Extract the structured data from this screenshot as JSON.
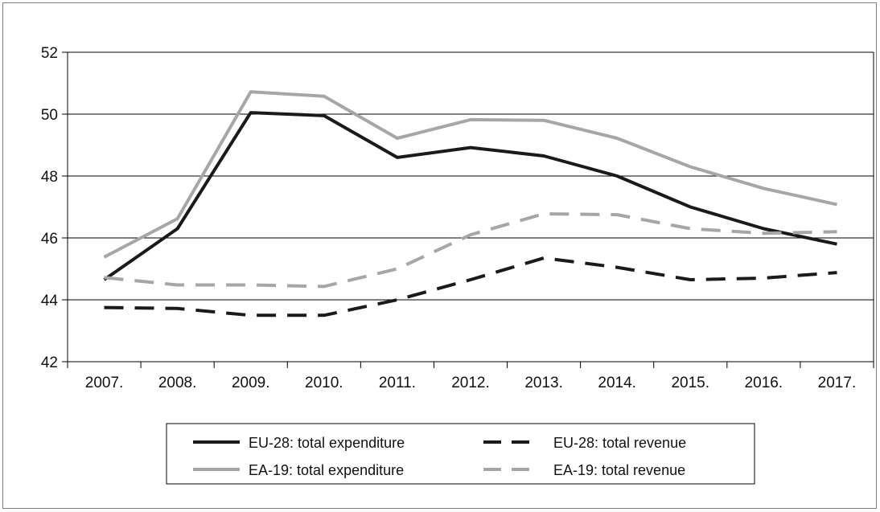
{
  "chart_data": {
    "type": "line",
    "title": "",
    "xlabel": "",
    "ylabel": "",
    "categories": [
      "2007.",
      "2008.",
      "2009.",
      "2010.",
      "2011.",
      "2012.",
      "2013.",
      "2014.",
      "2015.",
      "2016.",
      "2017."
    ],
    "ylim": [
      42,
      52
    ],
    "yticks": [
      "42",
      "44",
      "46",
      "48",
      "50",
      "52"
    ],
    "grid": true,
    "legend_position": "bottom",
    "series": [
      {
        "name": "EU-28: total expenditure",
        "style": "solid",
        "color": "#1a1a1a",
        "values": [
          44.65,
          46.3,
          50.05,
          49.95,
          48.6,
          48.92,
          48.65,
          48.0,
          47.0,
          46.3,
          45.8
        ]
      },
      {
        "name": "EU-28: total revenue",
        "style": "dashed",
        "color": "#1a1a1a",
        "values": [
          43.75,
          43.72,
          43.5,
          43.5,
          44.0,
          44.65,
          45.35,
          45.05,
          44.65,
          44.7,
          44.88
        ]
      },
      {
        "name": "EA-19: total expenditure",
        "style": "solid",
        "color": "#a6a6a6",
        "values": [
          45.38,
          46.62,
          50.72,
          50.58,
          49.22,
          49.82,
          49.8,
          49.22,
          48.3,
          47.6,
          47.08
        ]
      },
      {
        "name": "EA-19: total revenue",
        "style": "dashed",
        "color": "#a6a6a6",
        "values": [
          44.72,
          44.48,
          44.48,
          44.43,
          45.0,
          46.1,
          46.78,
          46.75,
          46.3,
          46.15,
          46.2
        ]
      }
    ]
  }
}
